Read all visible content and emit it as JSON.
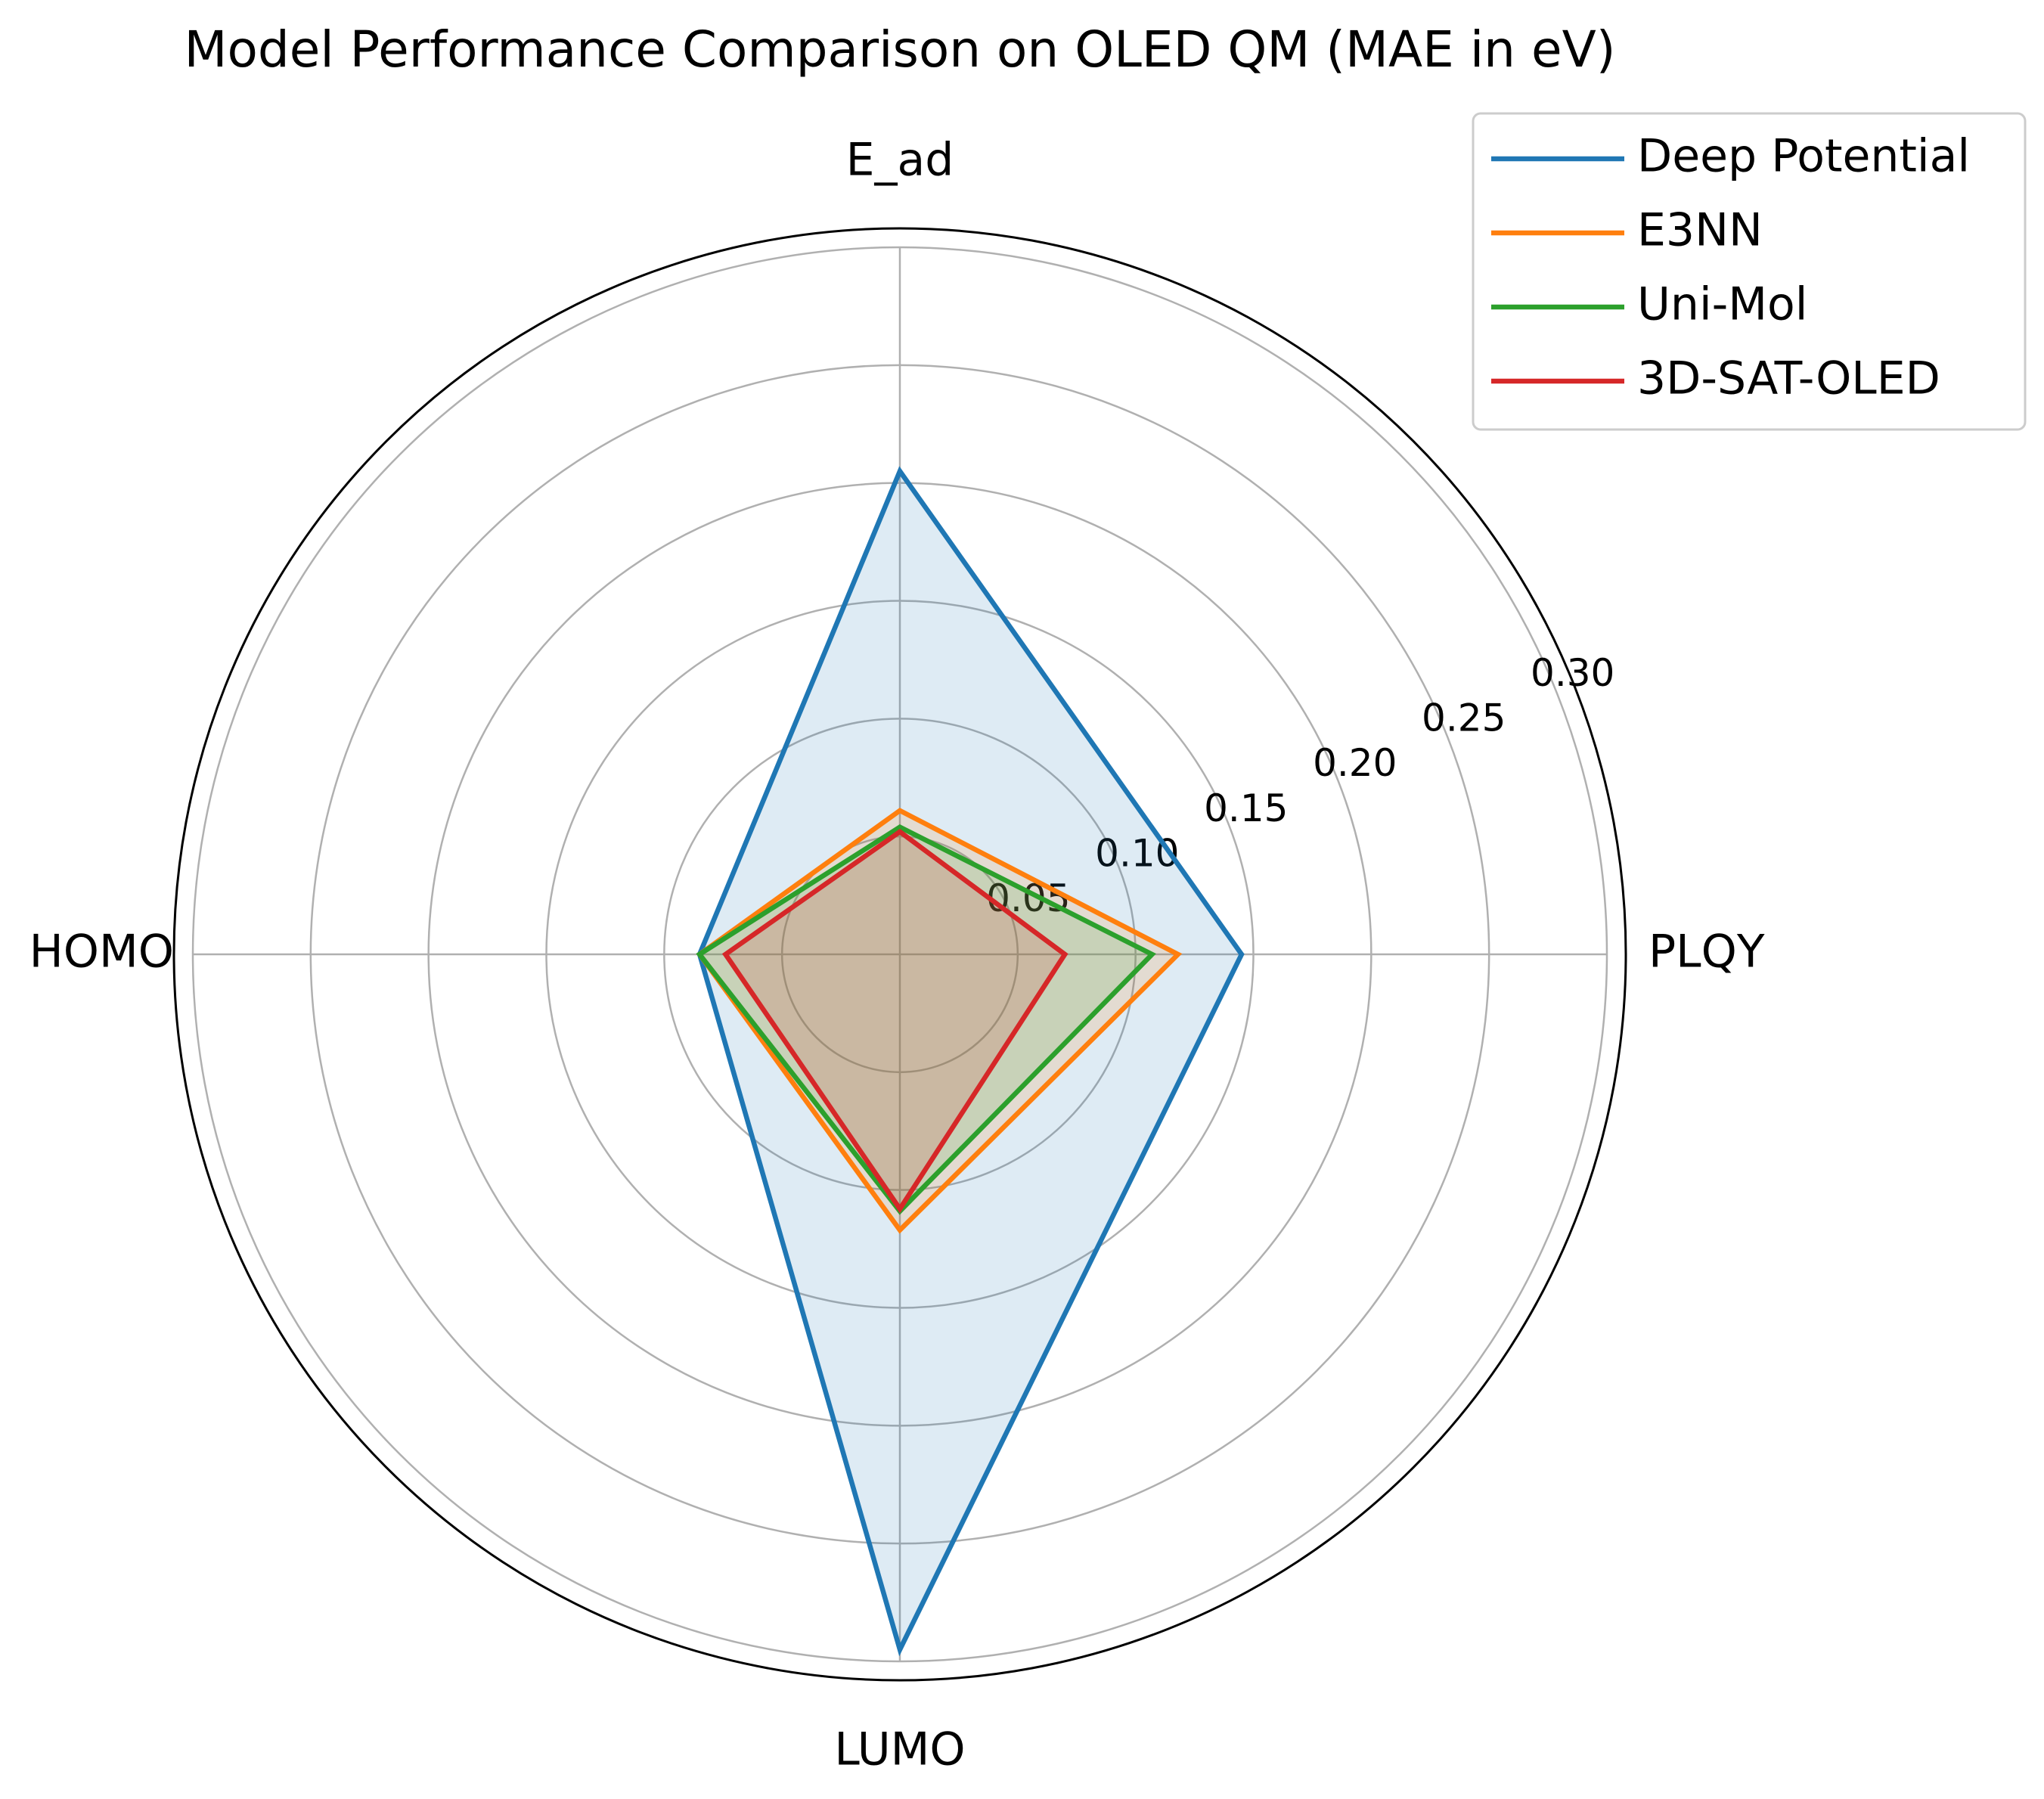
{
  "chart_data": {
    "type": "radar",
    "title": "Model Performance Comparison on OLED QM (MAE in eV)",
    "axes": [
      "PLQY",
      "E_ad",
      "HOMO",
      "LUMO"
    ],
    "rlim": [
      0,
      0.3
    ],
    "rticks": [
      0.05,
      0.1,
      0.15,
      0.2,
      0.25,
      0.3
    ],
    "rtick_labels": [
      "0.05",
      "0.10",
      "0.15",
      "0.20",
      "0.25",
      "0.30"
    ],
    "grid": true,
    "legend_position": "top-right",
    "series": [
      {
        "name": "Deep Potential",
        "color": "#1f77b4",
        "values": [
          0.145,
          0.205,
          0.085,
          0.295
        ]
      },
      {
        "name": "E3NN",
        "color": "#ff7f0e",
        "values": [
          0.118,
          0.061,
          0.085,
          0.117
        ]
      },
      {
        "name": "Uni-Mol",
        "color": "#2ca02c",
        "values": [
          0.107,
          0.054,
          0.085,
          0.109
        ]
      },
      {
        "name": "3D-SAT-OLED",
        "color": "#d62728",
        "values": [
          0.07,
          0.052,
          0.074,
          0.108
        ]
      }
    ]
  }
}
